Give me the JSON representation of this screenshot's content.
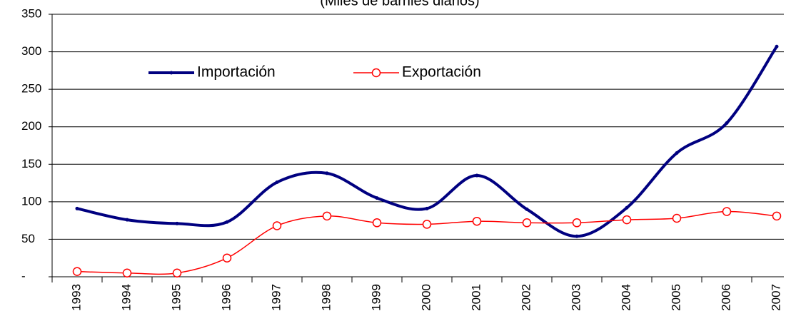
{
  "chart_data": {
    "type": "line",
    "subtitle": "(Miles de barriles diarios)",
    "categories": [
      "1993",
      "1994",
      "1995",
      "1996",
      "1997",
      "1998",
      "1999",
      "2000",
      "2001",
      "2002",
      "2003",
      "2004",
      "2005",
      "2006",
      "2007"
    ],
    "series": [
      {
        "name": "Importación",
        "color": "#000080",
        "values": [
          91,
          76,
          71,
          73,
          126,
          138,
          105,
          91,
          135,
          90,
          54,
          92,
          165,
          205,
          307
        ]
      },
      {
        "name": "Exportación",
        "color": "#ff0000",
        "values": [
          7,
          5,
          5,
          25,
          68,
          81,
          72,
          70,
          74,
          72,
          72,
          76,
          78,
          87,
          81
        ]
      }
    ],
    "ylim": [
      0,
      350
    ],
    "yticks": [
      {
        "value": 0,
        "label": "-"
      },
      50,
      100,
      150,
      200,
      250,
      300,
      350
    ],
    "grid": true,
    "smooth": true,
    "legend": "top"
  }
}
